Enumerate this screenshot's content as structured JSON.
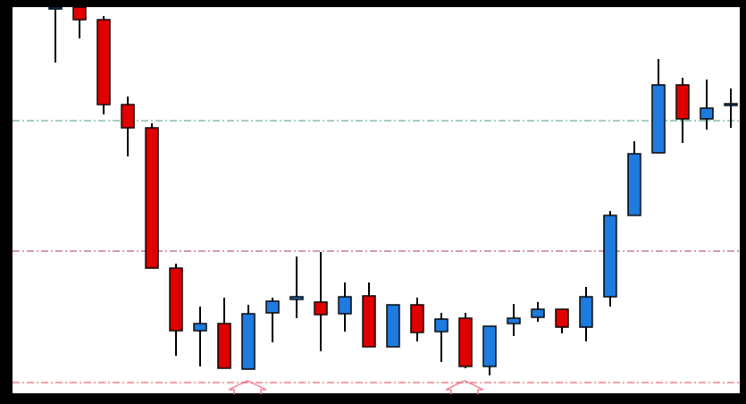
{
  "chart_data": {
    "type": "candlestick",
    "up_color": "#1e7be0",
    "down_color": "#e00000",
    "ylim": [
      0,
      432
    ],
    "open": [
      430,
      432,
      418,
      323,
      297,
      140,
      70,
      78,
      27,
      90,
      105,
      102,
      89,
      109,
      52,
      99,
      69,
      84,
      30,
      78,
      85,
      94,
      74,
      108,
      199,
      269,
      345,
      307,
      322
    ],
    "high": [
      432,
      432,
      422,
      332,
      302,
      145,
      97,
      107,
      99,
      107,
      153,
      158,
      124,
      124,
      99,
      107,
      90,
      90,
      75,
      100,
      102,
      94,
      119,
      204,
      282,
      374,
      353,
      351,
      341
    ],
    "low": [
      370,
      397,
      312,
      265,
      140,
      42,
      30,
      28,
      27,
      57,
      84,
      47,
      69,
      52,
      52,
      58,
      35,
      28,
      20,
      64,
      80,
      67,
      58,
      97,
      199,
      269,
      280,
      295,
      297
    ],
    "close": [
      432,
      418,
      323,
      297,
      140,
      70,
      78,
      28,
      89,
      103,
      108,
      88,
      108,
      52,
      99,
      68,
      83,
      30,
      75,
      84,
      94,
      74,
      108,
      199,
      268,
      345,
      307,
      319,
      324
    ],
    "hlines": [
      {
        "value": 305,
        "color": "#3a9a6a"
      },
      {
        "value": 159,
        "color": "#a03060"
      },
      {
        "value": 12,
        "color": "#e03040"
      }
    ]
  }
}
